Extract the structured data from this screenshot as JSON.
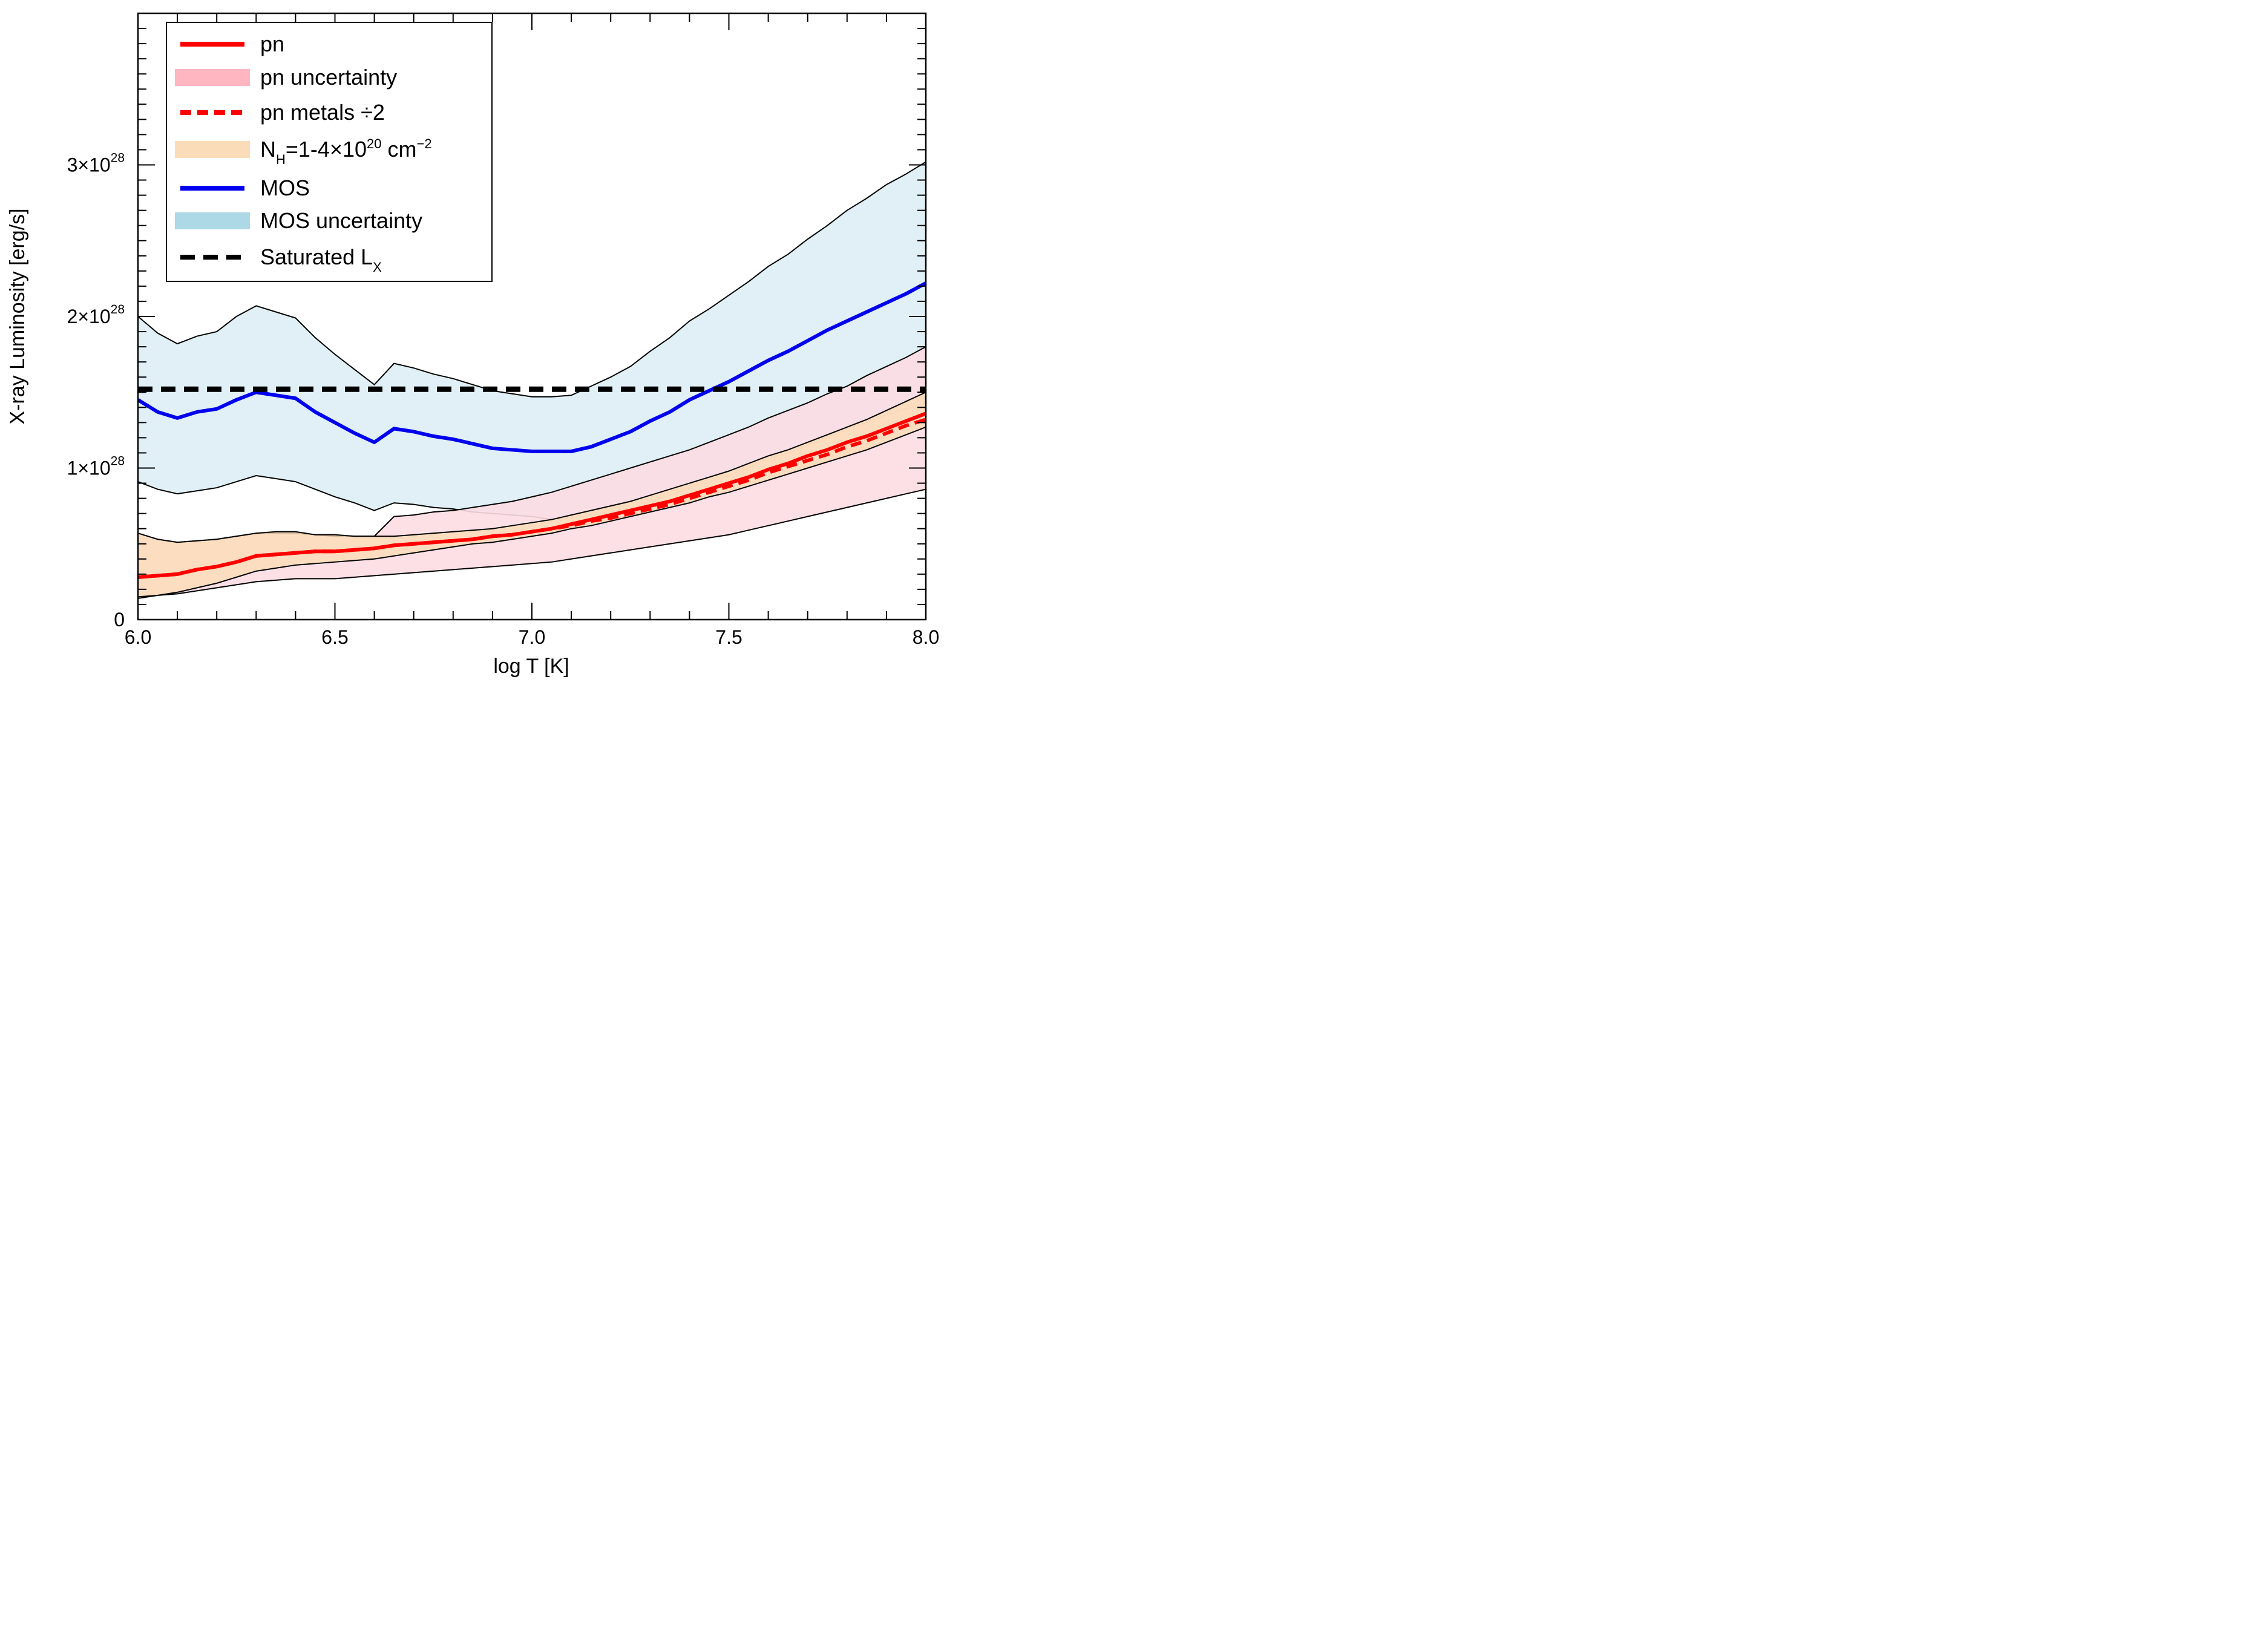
{
  "chart_data": {
    "type": "line",
    "title": "",
    "xlabel": "log T [K]",
    "ylabel": "X-ray Luminosity [erg/s]",
    "xlim": [
      6.0,
      8.0
    ],
    "ylim": [
      0,
      4e+28
    ],
    "x_ticks": [
      {
        "value": 6.0,
        "label": "6.0"
      },
      {
        "value": 6.5,
        "label": "6.5"
      },
      {
        "value": 7.0,
        "label": "7.0"
      },
      {
        "value": 7.5,
        "label": "7.5"
      },
      {
        "value": 8.0,
        "label": "8.0"
      }
    ],
    "y_ticks": [
      {
        "value": 0,
        "mantissa": "0",
        "exponent": ""
      },
      {
        "value": 1e+28,
        "mantissa": "1×10",
        "exponent": "28"
      },
      {
        "value": 2e+28,
        "mantissa": "2×10",
        "exponent": "28"
      },
      {
        "value": 3e+28,
        "mantissa": "3×10",
        "exponent": "28"
      }
    ],
    "grid": false,
    "legend_position": "top-left",
    "legend": [
      {
        "label": "pn",
        "style": "line",
        "color": "#ff0000"
      },
      {
        "label": "pn uncertainty",
        "style": "band",
        "color": "#ffb6c1"
      },
      {
        "label": "pn metals ÷2",
        "style": "dashed",
        "color": "#ff0000"
      },
      {
        "label": "N",
        "sub": "H",
        "label_rest": "=1-4×10",
        "sup": "20",
        "label_tail": " cm",
        "sup2": "−2",
        "style": "band",
        "color": "#fbdcb8"
      },
      {
        "label": "MOS",
        "style": "line",
        "color": "#0000ee"
      },
      {
        "label": "MOS uncertainty",
        "style": "band",
        "color": "#add8e6"
      },
      {
        "label": "Saturated L",
        "sub": "X",
        "style": "dashed",
        "color": "#000000"
      }
    ],
    "x": [
      6.0,
      6.05,
      6.1,
      6.15,
      6.2,
      6.25,
      6.3,
      6.35,
      6.4,
      6.45,
      6.5,
      6.55,
      6.6,
      6.65,
      6.7,
      6.75,
      6.8,
      6.85,
      6.9,
      6.95,
      7.0,
      7.05,
      7.1,
      7.15,
      7.2,
      7.25,
      7.3,
      7.35,
      7.4,
      7.45,
      7.5,
      7.55,
      7.6,
      7.65,
      7.7,
      7.75,
      7.8,
      7.85,
      7.9,
      7.95,
      8.0
    ],
    "series": [
      {
        "name": "MOS uncertainty",
        "kind": "band",
        "color": "#ddeef5",
        "upper": [
          2.0,
          1.89,
          1.82,
          1.87,
          1.9,
          2.0,
          2.07,
          2.03,
          1.99,
          1.86,
          1.75,
          1.65,
          1.55,
          1.69,
          1.66,
          1.62,
          1.59,
          1.55,
          1.51,
          1.49,
          1.47,
          1.47,
          1.48,
          1.54,
          1.6,
          1.67,
          1.77,
          1.86,
          1.97,
          2.05,
          2.14,
          2.23,
          2.33,
          2.41,
          2.51,
          2.6,
          2.7,
          2.78,
          2.87,
          2.94,
          3.02
        ],
        "lower": [
          0.91,
          0.86,
          0.83,
          0.85,
          0.87,
          0.91,
          0.95,
          0.93,
          0.91,
          0.86,
          0.81,
          0.77,
          0.72,
          0.77,
          0.76,
          0.74,
          0.73,
          0.71,
          0.7,
          0.69,
          0.68,
          0.66,
          0.67,
          0.69,
          0.71,
          0.74,
          0.78,
          0.82,
          0.87,
          0.91,
          0.95,
          1.0,
          1.06,
          1.1,
          1.15,
          1.2,
          1.26,
          1.3,
          1.35,
          1.39,
          1.43
        ]
      },
      {
        "name": "pn uncertainty",
        "kind": "band",
        "color": "#fcdde3",
        "upper": [
          0.57,
          0.53,
          0.51,
          0.52,
          0.53,
          0.55,
          0.57,
          0.57,
          0.57,
          0.56,
          0.55,
          0.55,
          0.55,
          0.68,
          0.69,
          0.71,
          0.72,
          0.74,
          0.76,
          0.78,
          0.81,
          0.84,
          0.88,
          0.92,
          0.96,
          1.0,
          1.04,
          1.08,
          1.12,
          1.17,
          1.22,
          1.27,
          1.33,
          1.38,
          1.43,
          1.49,
          1.54,
          1.61,
          1.67,
          1.73,
          1.8
        ],
        "lower": [
          0.14,
          0.16,
          0.17,
          0.19,
          0.21,
          0.23,
          0.25,
          0.26,
          0.27,
          0.27,
          0.27,
          0.28,
          0.29,
          0.3,
          0.31,
          0.32,
          0.33,
          0.34,
          0.35,
          0.36,
          0.37,
          0.38,
          0.4,
          0.42,
          0.44,
          0.46,
          0.48,
          0.5,
          0.52,
          0.54,
          0.56,
          0.59,
          0.62,
          0.65,
          0.68,
          0.71,
          0.74,
          0.77,
          0.8,
          0.83,
          0.86
        ]
      },
      {
        "name": "N_H band",
        "kind": "band",
        "color": "#fcdcb8",
        "upper": [
          0.57,
          0.53,
          0.51,
          0.52,
          0.53,
          0.55,
          0.57,
          0.58,
          0.58,
          0.56,
          0.56,
          0.55,
          0.55,
          0.55,
          0.56,
          0.57,
          0.58,
          0.59,
          0.6,
          0.62,
          0.64,
          0.66,
          0.69,
          0.72,
          0.75,
          0.78,
          0.82,
          0.86,
          0.9,
          0.94,
          0.98,
          1.03,
          1.08,
          1.12,
          1.17,
          1.22,
          1.27,
          1.32,
          1.38,
          1.44,
          1.5
        ],
        "lower": [
          0.15,
          0.16,
          0.18,
          0.21,
          0.24,
          0.28,
          0.32,
          0.34,
          0.36,
          0.37,
          0.38,
          0.39,
          0.4,
          0.42,
          0.44,
          0.46,
          0.48,
          0.5,
          0.51,
          0.53,
          0.55,
          0.57,
          0.6,
          0.62,
          0.65,
          0.68,
          0.71,
          0.74,
          0.77,
          0.81,
          0.84,
          0.88,
          0.92,
          0.96,
          1.0,
          1.04,
          1.08,
          1.12,
          1.17,
          1.22,
          1.27
        ]
      },
      {
        "name": "MOS",
        "kind": "line",
        "color": "#0000ee",
        "values": [
          1.45,
          1.37,
          1.33,
          1.37,
          1.39,
          1.45,
          1.5,
          1.48,
          1.46,
          1.37,
          1.3,
          1.23,
          1.17,
          1.26,
          1.24,
          1.21,
          1.19,
          1.16,
          1.13,
          1.12,
          1.11,
          1.11,
          1.11,
          1.14,
          1.19,
          1.24,
          1.31,
          1.37,
          1.45,
          1.51,
          1.57,
          1.64,
          1.71,
          1.77,
          1.84,
          1.91,
          1.97,
          2.03,
          2.09,
          2.15,
          2.22
        ]
      },
      {
        "name": "pn",
        "kind": "line",
        "color": "#ff0000",
        "values": [
          0.28,
          0.29,
          0.3,
          0.33,
          0.35,
          0.38,
          0.42,
          0.43,
          0.44,
          0.45,
          0.45,
          0.46,
          0.47,
          0.49,
          0.5,
          0.51,
          0.52,
          0.53,
          0.55,
          0.56,
          0.58,
          0.6,
          0.63,
          0.66,
          0.69,
          0.72,
          0.75,
          0.78,
          0.82,
          0.86,
          0.9,
          0.94,
          0.99,
          1.03,
          1.08,
          1.12,
          1.17,
          1.21,
          1.26,
          1.31,
          1.36
        ]
      },
      {
        "name": "pn metals ÷2",
        "kind": "dashed",
        "color": "#ff0000",
        "values": [
          0.28,
          0.29,
          0.3,
          0.33,
          0.35,
          0.38,
          0.42,
          0.43,
          0.44,
          0.45,
          0.45,
          0.46,
          0.47,
          0.49,
          0.5,
          0.51,
          0.52,
          0.53,
          0.55,
          0.56,
          0.58,
          0.6,
          0.62,
          0.65,
          0.67,
          0.7,
          0.73,
          0.76,
          0.8,
          0.84,
          0.88,
          0.92,
          0.97,
          1.01,
          1.05,
          1.09,
          1.14,
          1.18,
          1.23,
          1.28,
          1.32
        ]
      },
      {
        "name": "Saturated L_X",
        "kind": "dashed",
        "color": "#000000",
        "constant": 1.52
      }
    ],
    "value_scale": "1e28"
  }
}
